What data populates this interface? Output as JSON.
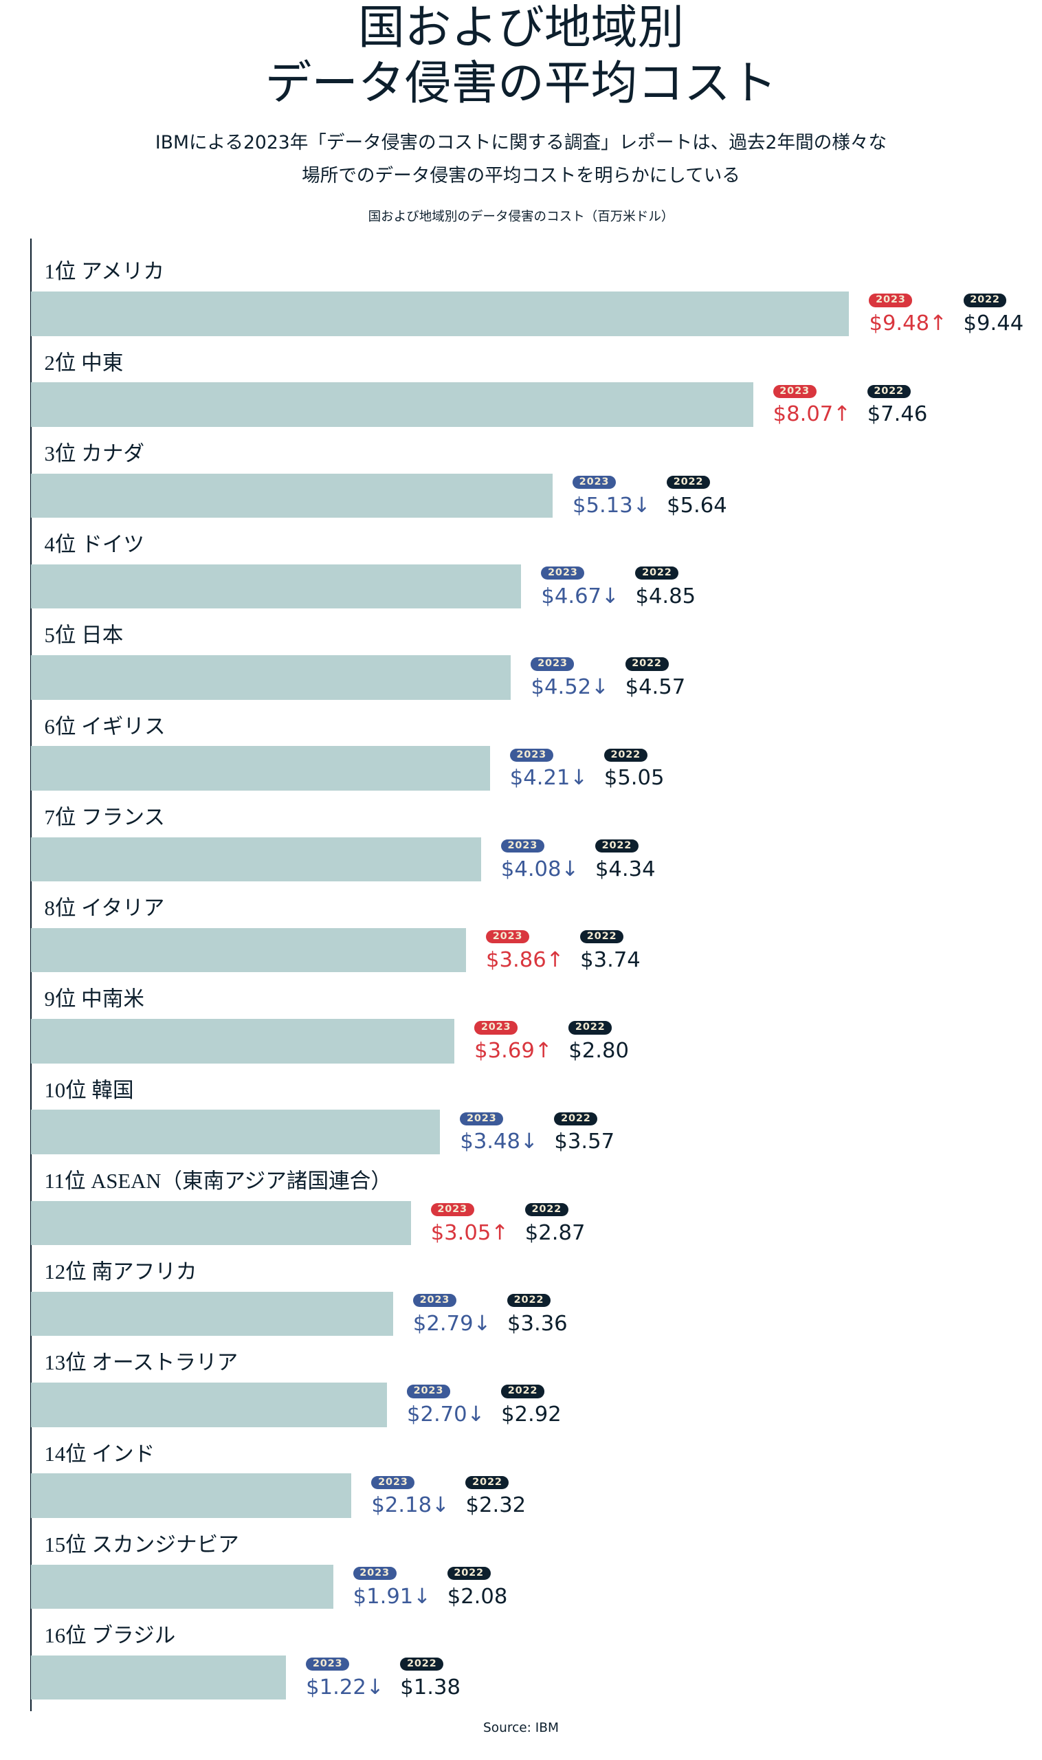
{
  "title_line1": "国および地域別",
  "title_line2": "データ侵害の平均コスト",
  "subtitle_line1": "IBMによる2023年「データ侵害のコストに関する調査」レポートは、過去2年間の様々な",
  "subtitle_line2": "場所でのデータ侵害の平均コストを明らかにしている",
  "source": "Source: IBM",
  "colors": {
    "bar": "#b7d1d1",
    "increase": "#d9363e",
    "decrease": "#3c5a99",
    "prior_year": "#0d1f2d"
  },
  "chart_data": {
    "type": "bar",
    "orientation": "horizontal",
    "title": "国および地域別のデータ侵害のコスト（百万米ドル）",
    "series_labels": [
      "2023",
      "2022"
    ],
    "categories": [
      "1位 アメリカ",
      "2位 中東",
      "3位 カナダ",
      "4位 ドイツ",
      "5位 日本",
      "6位 イギリス",
      "7位 フランス",
      "8位 イタリア",
      "9位 中南米",
      "10位 韓国",
      "11位 ASEAN（東南アジア諸国連合）",
      "12位 南アフリカ",
      "13位 オーストラリア",
      "14位 インド",
      "15位 スカンジナビア",
      "16位 ブラジル"
    ],
    "values_2023": [
      9.48,
      8.07,
      5.13,
      4.67,
      4.52,
      4.21,
      4.08,
      3.86,
      3.69,
      3.48,
      3.05,
      2.79,
      2.7,
      2.18,
      1.91,
      1.22
    ],
    "values_2022": [
      9.44,
      7.46,
      5.64,
      4.85,
      4.57,
      5.05,
      4.34,
      3.74,
      2.8,
      3.57,
      2.87,
      3.36,
      2.92,
      2.32,
      2.08,
      1.38
    ],
    "unit_prefix": "$"
  }
}
